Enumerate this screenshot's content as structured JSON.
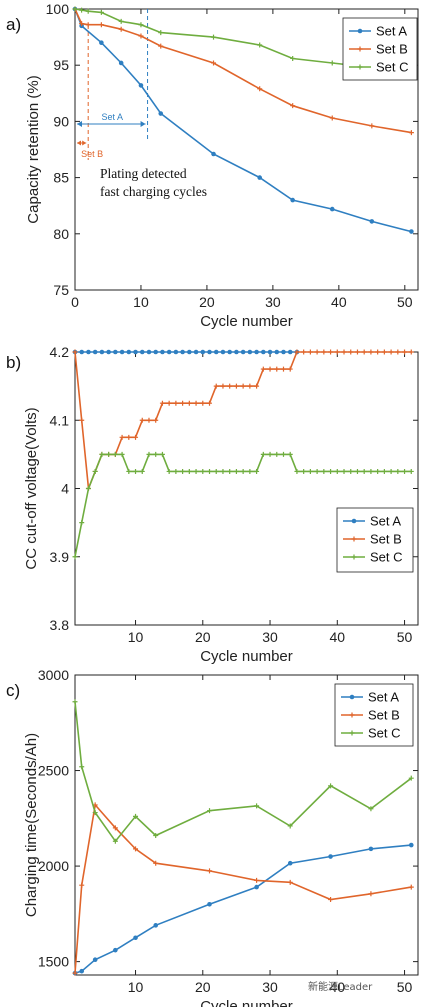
{
  "colors": {
    "set_a": "#2f7fc1",
    "set_b": "#e0652b",
    "set_c": "#6fad3f",
    "axis": "#222222"
  },
  "watermark": "新能源Leader",
  "chart_data": [
    {
      "panel_label": "a)",
      "type": "line",
      "xlabel": "Cycle number",
      "ylabel": "Capacity retention (%)",
      "xlim": [
        0,
        52
      ],
      "ylim": [
        75,
        100
      ],
      "xticks": [
        0,
        10,
        20,
        30,
        40,
        50
      ],
      "yticks": [
        75,
        80,
        85,
        90,
        95,
        100
      ],
      "legend_position": "top-right",
      "series": [
        {
          "name": "Set A",
          "color_key": "set_a",
          "marker": "dot",
          "x": [
            0,
            1,
            4,
            7,
            10,
            13,
            21,
            28,
            33,
            39,
            45,
            51
          ],
          "y": [
            100,
            98.5,
            97,
            95.2,
            93.2,
            90.7,
            87.1,
            85,
            83,
            82.2,
            81.1,
            80.2
          ]
        },
        {
          "name": "Set B",
          "color_key": "set_b",
          "marker": "plus",
          "x": [
            0,
            1,
            2,
            4,
            7,
            10,
            13,
            21,
            28,
            33,
            39,
            45,
            51
          ],
          "y": [
            100,
            98.7,
            98.6,
            98.6,
            98.2,
            97.6,
            96.7,
            95.2,
            92.9,
            91.4,
            90.3,
            89.6,
            89
          ]
        },
        {
          "name": "Set C",
          "color_key": "set_c",
          "marker": "plus",
          "x": [
            0,
            1,
            2,
            4,
            7,
            10,
            13,
            21,
            28,
            33,
            39,
            45,
            51
          ],
          "y": [
            100,
            99.9,
            99.8,
            99.7,
            98.9,
            98.6,
            97.9,
            97.5,
            96.8,
            95.6,
            95.2,
            94.8,
            94.3
          ]
        }
      ],
      "annotations": {
        "set_a_text": "Set A",
        "set_b_text": "Set B",
        "plating_line1": "Plating detected",
        "plating_line2": "fast charging cycles",
        "set_a_cycle": 11,
        "set_b_cycle": 2
      }
    },
    {
      "panel_label": "b)",
      "type": "line",
      "xlabel": "Cycle number",
      "ylabel": "CC cut-off voltage(Volts)",
      "xlim": [
        1,
        52
      ],
      "ylim": [
        3.8,
        4.2
      ],
      "xticks": [
        10,
        20,
        30,
        40,
        50
      ],
      "yticks": [
        3.8,
        3.9,
        4,
        4.1,
        4.2
      ],
      "legend_position": "bottom-right",
      "series": [
        {
          "name": "Set A",
          "color_key": "set_a",
          "marker": "dot",
          "x": [
            1,
            2,
            3,
            4,
            5,
            6,
            7,
            8,
            9,
            10,
            11,
            12,
            13,
            14,
            15,
            16,
            17,
            18,
            19,
            20,
            21,
            22,
            23,
            24,
            25,
            26,
            27,
            28,
            29,
            30,
            31,
            32,
            33,
            34
          ],
          "y": [
            4.2,
            4.2,
            4.2,
            4.2,
            4.2,
            4.2,
            4.2,
            4.2,
            4.2,
            4.2,
            4.2,
            4.2,
            4.2,
            4.2,
            4.2,
            4.2,
            4.2,
            4.2,
            4.2,
            4.2,
            4.2,
            4.2,
            4.2,
            4.2,
            4.2,
            4.2,
            4.2,
            4.2,
            4.2,
            4.2,
            4.2,
            4.2,
            4.2,
            4.2
          ]
        },
        {
          "name": "Set B",
          "color_key": "set_b",
          "marker": "plus",
          "x": [
            1,
            2,
            3,
            4,
            5,
            6,
            7,
            8,
            9,
            10,
            11,
            12,
            13,
            14,
            15,
            16,
            17,
            18,
            19,
            20,
            21,
            22,
            23,
            24,
            25,
            26,
            27,
            28,
            29,
            30,
            31,
            32,
            33,
            34,
            35,
            36,
            37,
            38,
            39,
            40,
            41,
            42,
            43,
            44,
            45,
            46,
            47,
            48,
            49,
            50,
            51
          ],
          "y": [
            4.2,
            4.1,
            4.0,
            4.025,
            4.05,
            4.05,
            4.05,
            4.075,
            4.075,
            4.075,
            4.1,
            4.1,
            4.1,
            4.125,
            4.125,
            4.125,
            4.125,
            4.125,
            4.125,
            4.125,
            4.125,
            4.15,
            4.15,
            4.15,
            4.15,
            4.15,
            4.15,
            4.15,
            4.175,
            4.175,
            4.175,
            4.175,
            4.175,
            4.2,
            4.2,
            4.2,
            4.2,
            4.2,
            4.2,
            4.2,
            4.2,
            4.2,
            4.2,
            4.2,
            4.2,
            4.2,
            4.2,
            4.2,
            4.2,
            4.2,
            4.2
          ]
        },
        {
          "name": "Set C",
          "color_key": "set_c",
          "marker": "plus",
          "x": [
            1,
            2,
            3,
            4,
            5,
            6,
            7,
            8,
            9,
            10,
            11,
            12,
            13,
            14,
            15,
            16,
            17,
            18,
            19,
            20,
            21,
            22,
            23,
            24,
            25,
            26,
            27,
            28,
            29,
            30,
            31,
            32,
            33,
            34,
            35,
            36,
            37,
            38,
            39,
            40,
            41,
            42,
            43,
            44,
            45,
            46,
            47,
            48,
            49,
            50,
            51
          ],
          "y": [
            3.9,
            3.95,
            4.0,
            4.025,
            4.05,
            4.05,
            4.05,
            4.05,
            4.025,
            4.025,
            4.025,
            4.05,
            4.05,
            4.05,
            4.025,
            4.025,
            4.025,
            4.025,
            4.025,
            4.025,
            4.025,
            4.025,
            4.025,
            4.025,
            4.025,
            4.025,
            4.025,
            4.025,
            4.05,
            4.05,
            4.05,
            4.05,
            4.05,
            4.025,
            4.025,
            4.025,
            4.025,
            4.025,
            4.025,
            4.025,
            4.025,
            4.025,
            4.025,
            4.025,
            4.025,
            4.025,
            4.025,
            4.025,
            4.025,
            4.025,
            4.025
          ]
        }
      ]
    },
    {
      "panel_label": "c)",
      "type": "line",
      "xlabel": "Cycle number",
      "ylabel": "Charging time(Seconds/Ah)",
      "xlim": [
        1,
        52
      ],
      "ylim": [
        1430,
        3000
      ],
      "xticks": [
        10,
        20,
        30,
        40,
        50
      ],
      "yticks": [
        1500,
        2000,
        2500,
        3000
      ],
      "legend_position": "top-right",
      "series": [
        {
          "name": "Set A",
          "color_key": "set_a",
          "marker": "dot",
          "x": [
            1,
            2,
            4,
            7,
            10,
            13,
            21,
            28,
            33,
            39,
            45,
            51
          ],
          "y": [
            1440,
            1450,
            1510,
            1560,
            1625,
            1690,
            1800,
            1890,
            2015,
            2050,
            2090,
            2110
          ]
        },
        {
          "name": "Set B",
          "color_key": "set_b",
          "marker": "plus",
          "x": [
            1,
            2,
            4,
            7,
            10,
            13,
            21,
            28,
            33,
            39,
            45,
            51
          ],
          "y": [
            1440,
            1900,
            2320,
            2200,
            2090,
            2015,
            1975,
            1925,
            1915,
            1825,
            1855,
            1890
          ]
        },
        {
          "name": "Set C",
          "color_key": "set_c",
          "marker": "plus",
          "x": [
            1,
            2,
            4,
            7,
            10,
            13,
            21,
            28,
            33,
            39,
            45,
            51
          ],
          "y": [
            2860,
            2520,
            2280,
            2130,
            2260,
            2160,
            2290,
            2315,
            2210,
            2420,
            2300,
            2460
          ]
        }
      ]
    }
  ]
}
